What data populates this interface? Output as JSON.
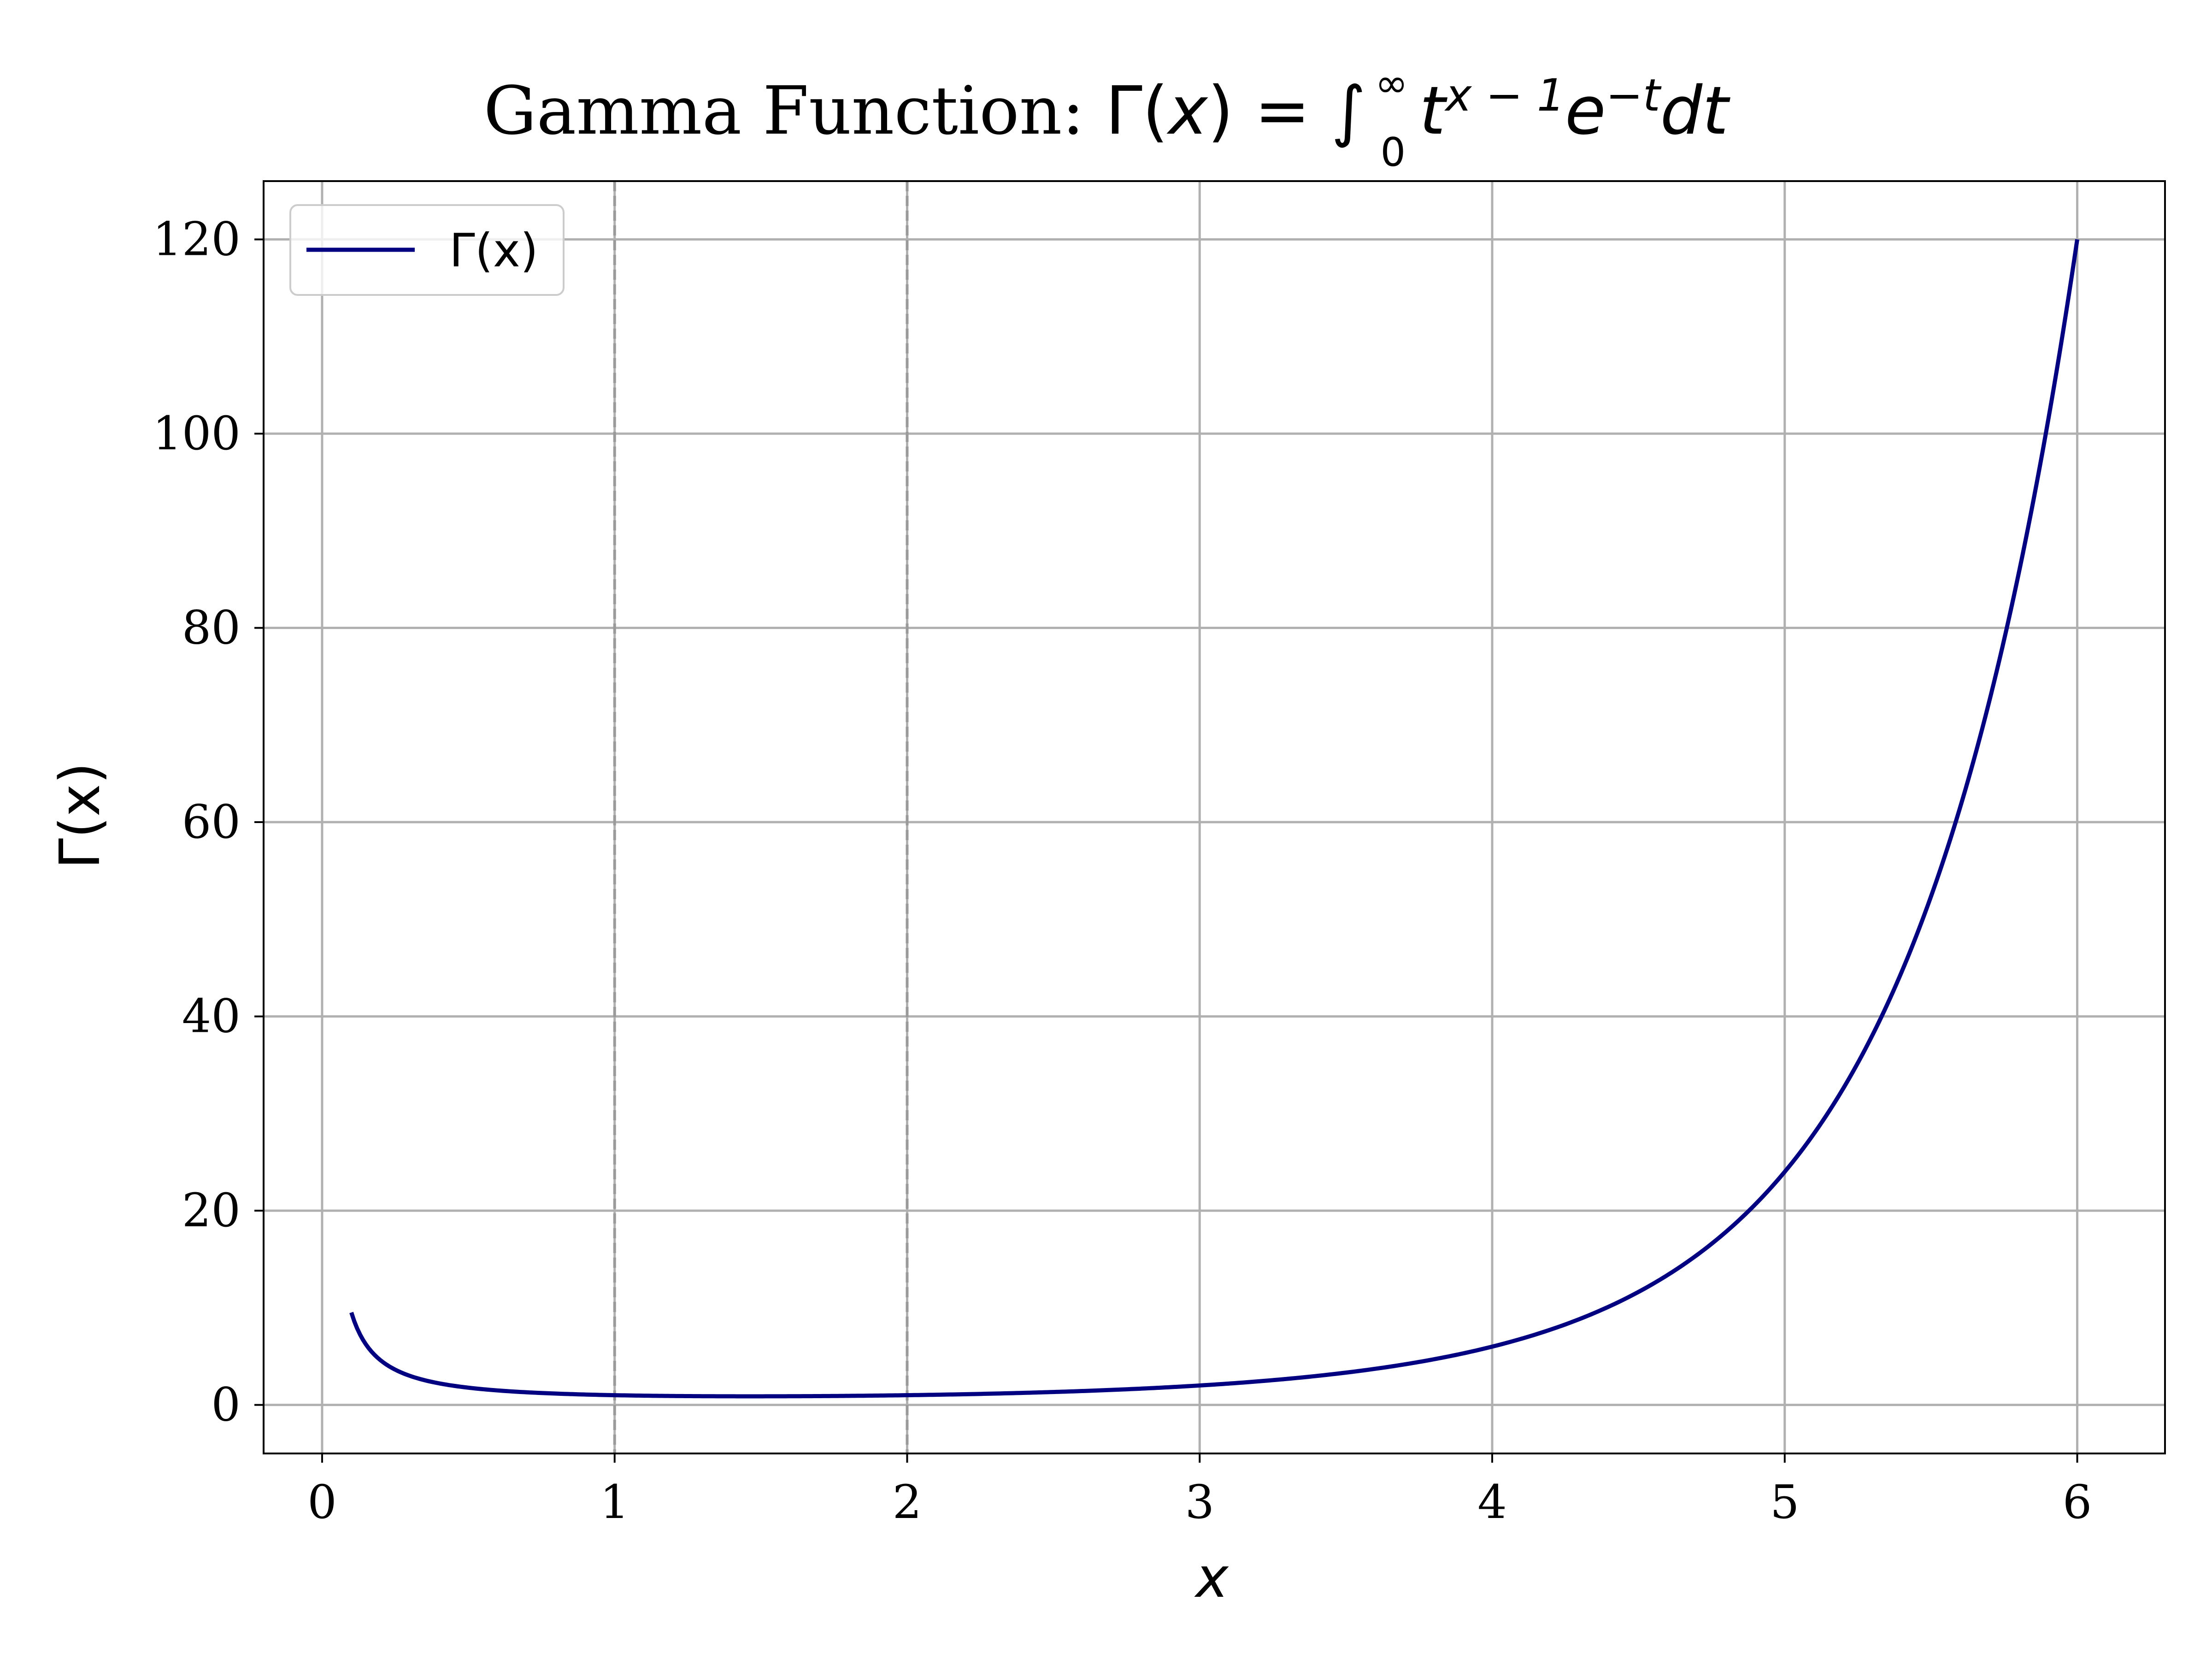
{
  "chart_data": {
    "type": "line",
    "title": "Gamma Function: Γ(x) = ∫₀^∞ t^{x−1} e^{−t} dt",
    "title_parts": {
      "text": "Gamma Function: ",
      "math_lhs": "Γ(",
      "math_var": "x",
      "math_rhs": ") = ∫",
      "lower_limit": "0",
      "upper_limit": "∞",
      "integrand_t": "t",
      "exp_one": "x − 1",
      "e": "e",
      "exp_two": "−t",
      "dt": "dt"
    },
    "xlabel": "x",
    "ylabel": "Γ(x)",
    "xlim": [
      -0.2,
      6.3
    ],
    "ylim": [
      -5,
      126
    ],
    "xticks": [
      0,
      1,
      2,
      3,
      4,
      5,
      6
    ],
    "xtick_labels": [
      "0",
      "1",
      "2",
      "3",
      "4",
      "5",
      "6"
    ],
    "yticks": [
      0,
      20,
      40,
      60,
      80,
      100,
      120
    ],
    "ytick_labels": [
      "0",
      "20",
      "40",
      "60",
      "80",
      "100",
      "120"
    ],
    "grid": true,
    "vertical_reference_lines": [
      1,
      2
    ],
    "legend": {
      "location": "top-left",
      "entries": [
        "Γ(x)"
      ]
    },
    "series": [
      {
        "name": "Γ(x)",
        "color": "#000080",
        "function": "gamma",
        "x_range": [
          0.1,
          6.0
        ]
      }
    ]
  },
  "colors": {
    "line": "#000080",
    "grid": "#b0b0b0",
    "ref_line": "#9a9a9a",
    "axes": "#000000"
  }
}
